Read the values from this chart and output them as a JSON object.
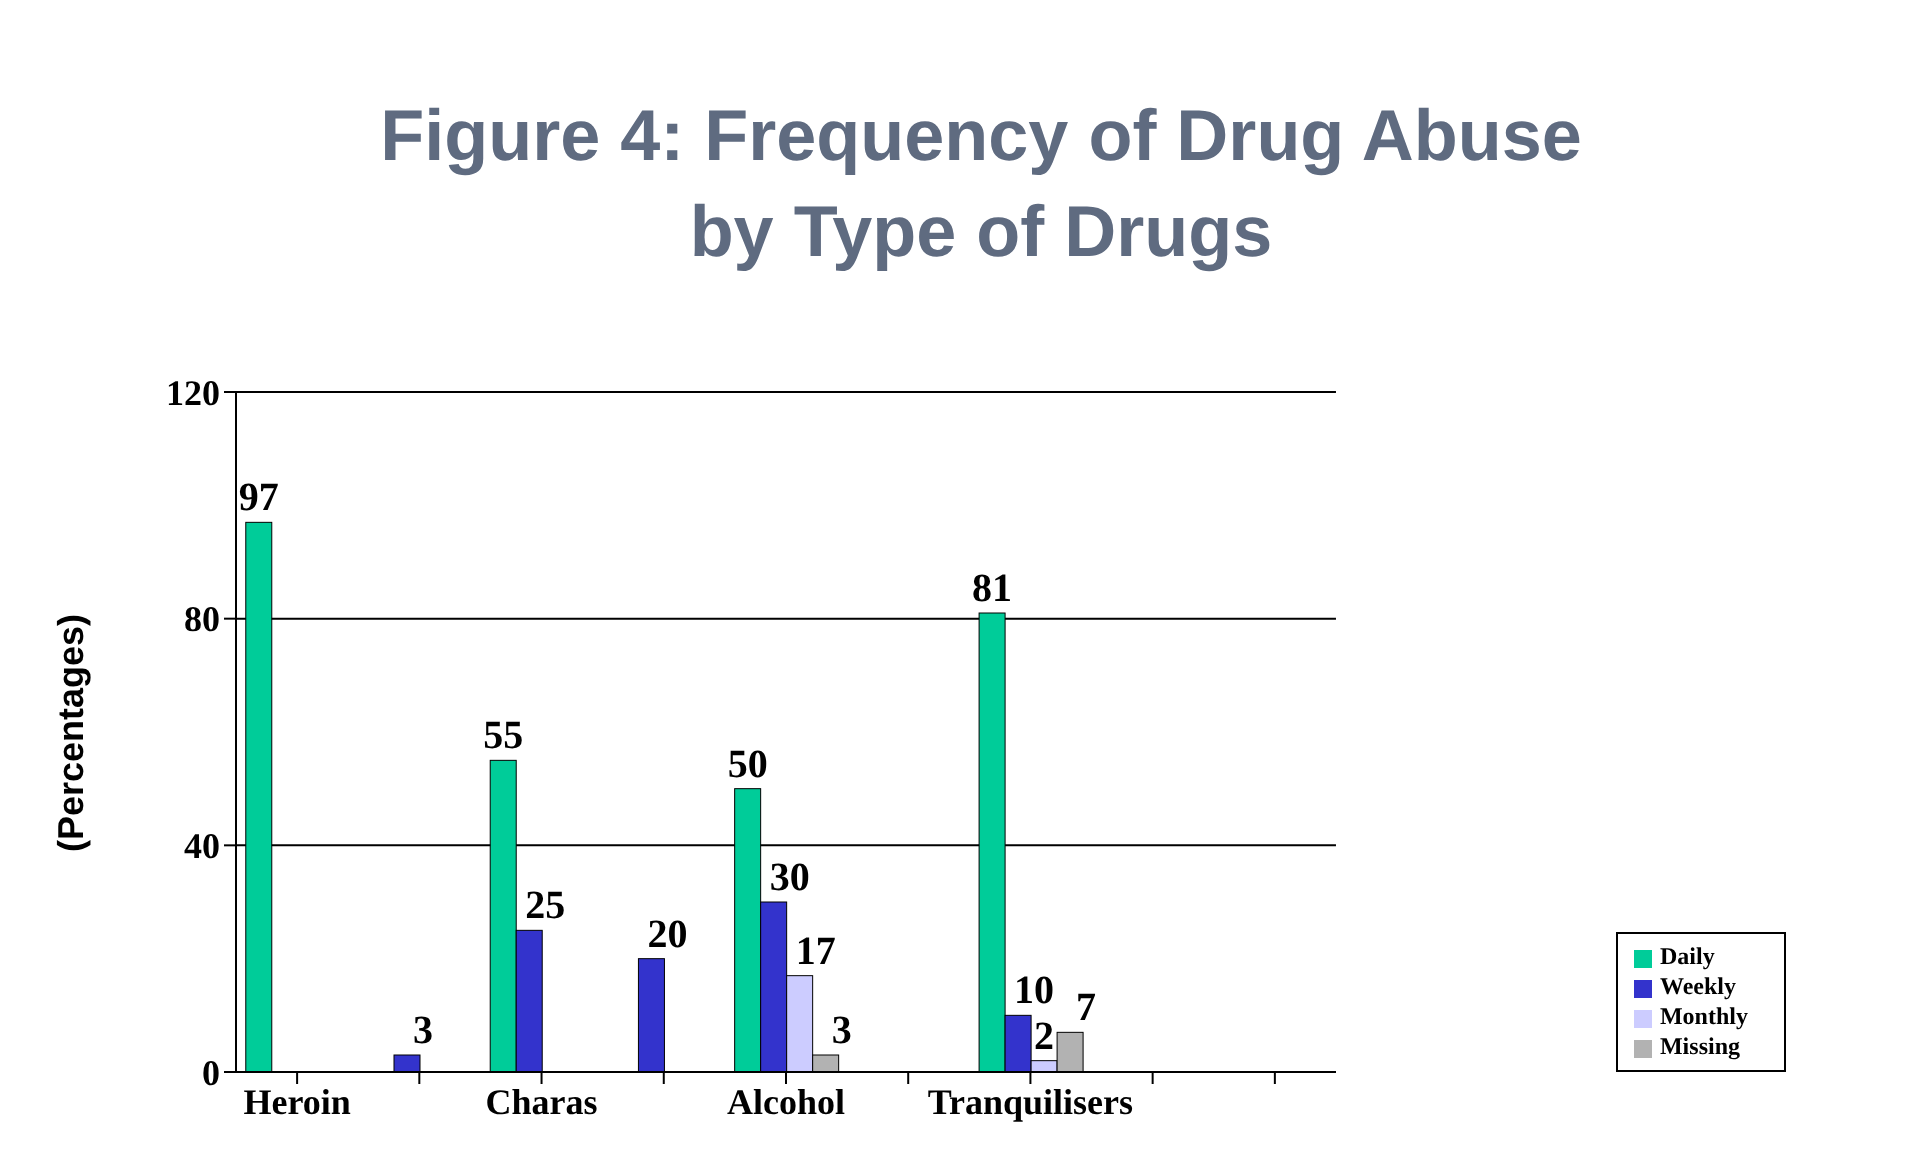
{
  "chart_data": {
    "type": "bar",
    "title": "Figure 4: Frequency of Drug Abuse\nby Type of Drugs",
    "ylabel": "(Percentages)",
    "categories": [
      "Heroin",
      null,
      "Charas",
      null,
      "Alcohol",
      null,
      "Tranquilisers",
      null,
      null
    ],
    "series": [
      {
        "name": "Daily",
        "color": "#00cc99",
        "values": [
          97,
          0,
          55,
          0,
          50,
          0,
          81,
          0,
          0
        ],
        "value_labels": [
          "97",
          null,
          "55",
          null,
          "50",
          null,
          "81",
          null,
          null
        ]
      },
      {
        "name": "Weekly",
        "color": "#3333cc",
        "values": [
          0,
          3,
          25,
          20,
          30,
          0,
          10,
          0,
          0
        ],
        "value_labels": [
          null,
          "3",
          "25",
          "20",
          "30",
          null,
          "10",
          null,
          null
        ]
      },
      {
        "name": "Monthly",
        "color": "#ccccff",
        "values": [
          0,
          0,
          0,
          0,
          17,
          0,
          2,
          0,
          0
        ],
        "value_labels": [
          null,
          null,
          null,
          null,
          "17",
          null,
          "2",
          null,
          null
        ]
      },
      {
        "name": "Missing",
        "color": "#b2b2b2",
        "values": [
          0,
          0,
          0,
          0,
          3,
          0,
          7,
          0,
          0
        ],
        "value_labels": [
          null,
          null,
          null,
          null,
          "3",
          null,
          "7",
          null,
          null
        ]
      }
    ],
    "ylim": [
      0,
      120
    ],
    "yticks": [
      0,
      40,
      80,
      120
    ],
    "grid": "y",
    "legend": "bottom right"
  }
}
